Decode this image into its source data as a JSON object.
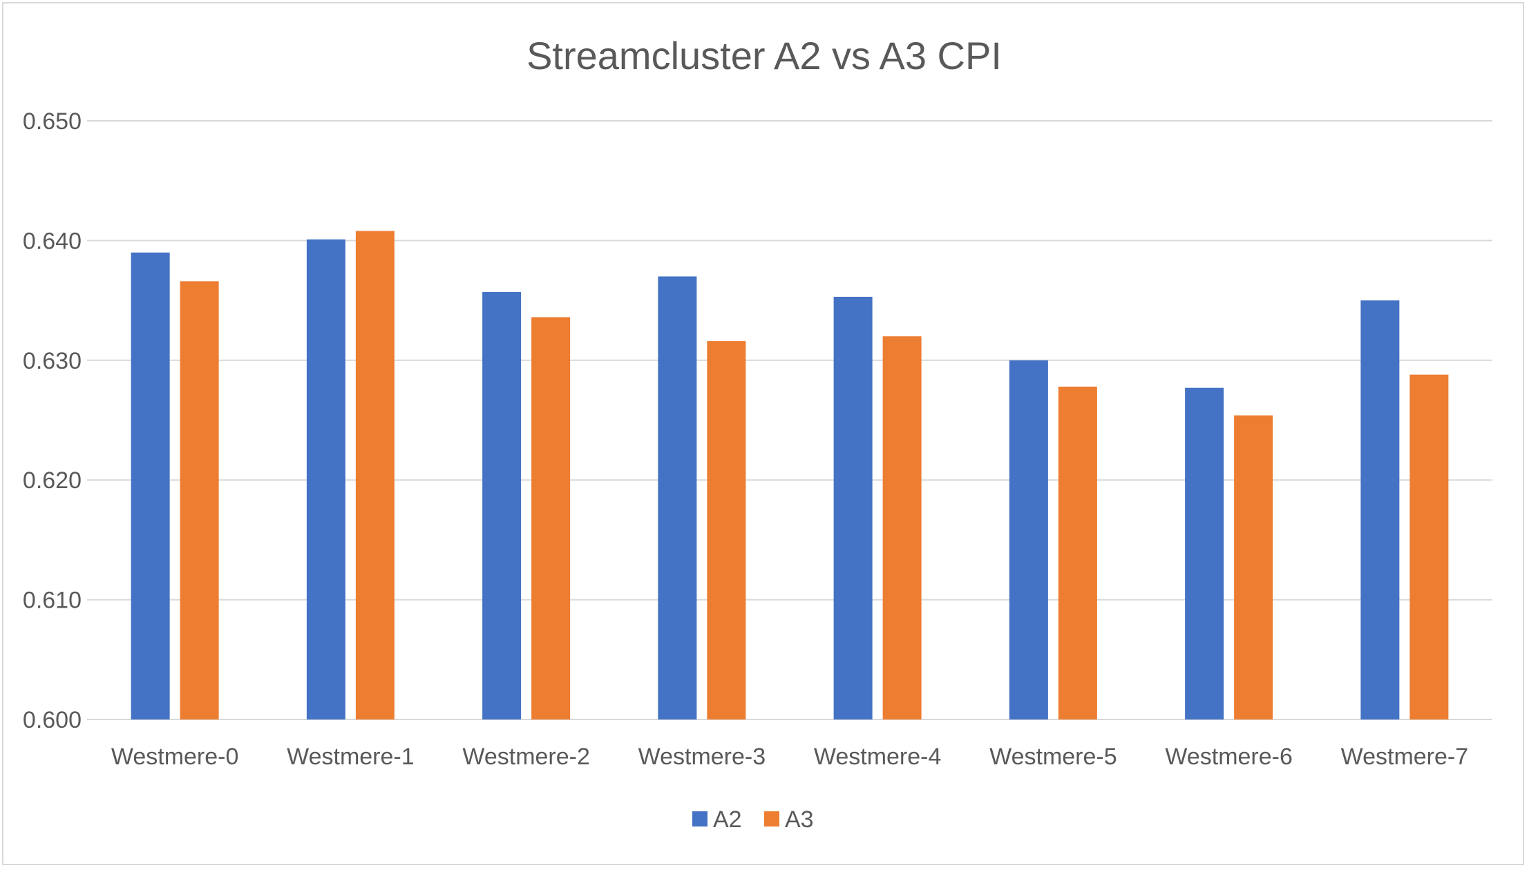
{
  "chart_data": {
    "type": "bar",
    "title": "Streamcluster A2 vs A3 CPI",
    "xlabel": "",
    "ylabel": "",
    "categories": [
      "Westmere-0",
      "Westmere-1",
      "Westmere-2",
      "Westmere-3",
      "Westmere-4",
      "Westmere-5",
      "Westmere-6",
      "Westmere-7"
    ],
    "series": [
      {
        "name": "A2",
        "color": "#4472c4",
        "values": [
          0.639,
          0.6401,
          0.6357,
          0.637,
          0.6353,
          0.63,
          0.6277,
          0.635
        ]
      },
      {
        "name": "A3",
        "color": "#ed7d31",
        "values": [
          0.6366,
          0.6408,
          0.6336,
          0.6316,
          0.632,
          0.6278,
          0.6254,
          0.6288
        ]
      }
    ],
    "ylim": [
      0.6,
      0.65
    ],
    "yticks": [
      "0.600",
      "0.610",
      "0.620",
      "0.630",
      "0.640",
      "0.650"
    ],
    "grid": true,
    "gridline_color": "#d9d9d9",
    "legend_position": "bottom"
  }
}
